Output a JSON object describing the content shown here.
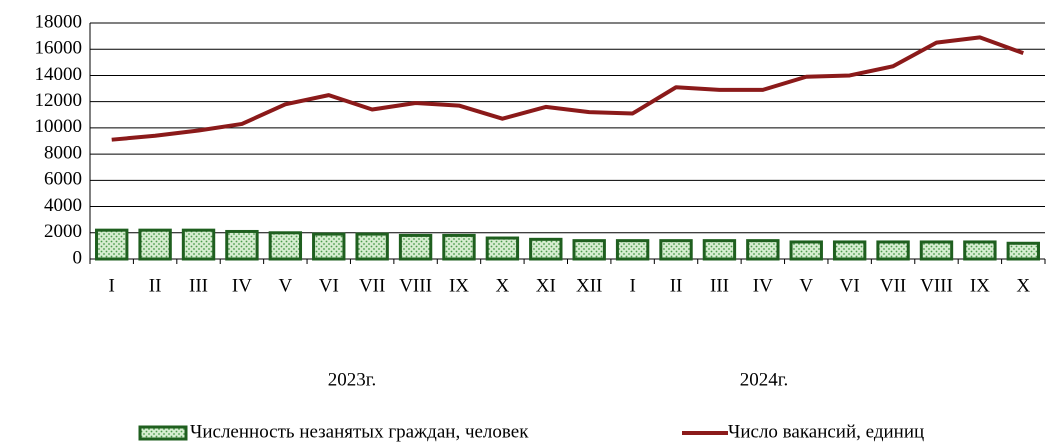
{
  "chart_data": {
    "type": "bar",
    "categories": [
      "I",
      "II",
      "III",
      "IV",
      "V",
      "VI",
      "VII",
      "VIII",
      "IX",
      "X",
      "XI",
      "XII",
      "I",
      "II",
      "III",
      "IV",
      "V",
      "VI",
      "VII",
      "VIII",
      "IX",
      "X"
    ],
    "x_groups": [
      "2023г.",
      "2024г."
    ],
    "series": [
      {
        "name": "Численность незанятых граждан, человек",
        "type": "bar",
        "color": "#1f5f1f",
        "values": [
          2200,
          2200,
          2200,
          2100,
          2000,
          1900,
          1900,
          1800,
          1800,
          1600,
          1500,
          1400,
          1400,
          1400,
          1400,
          1400,
          1300,
          1300,
          1300,
          1300,
          1300,
          1200
        ]
      },
      {
        "name": "Число вакансий, единиц",
        "type": "line",
        "color": "#8b1a1a",
        "values": [
          9100,
          9400,
          9800,
          10300,
          11800,
          12500,
          11400,
          11900,
          11700,
          10700,
          11600,
          11200,
          11100,
          13100,
          12900,
          12900,
          13900,
          14000,
          14700,
          16500,
          16900,
          15700
        ]
      }
    ],
    "ylim": [
      0,
      18000
    ],
    "yticks": [
      0,
      2000,
      4000,
      6000,
      8000,
      10000,
      12000,
      14000,
      16000,
      18000
    ],
    "grid": true
  }
}
